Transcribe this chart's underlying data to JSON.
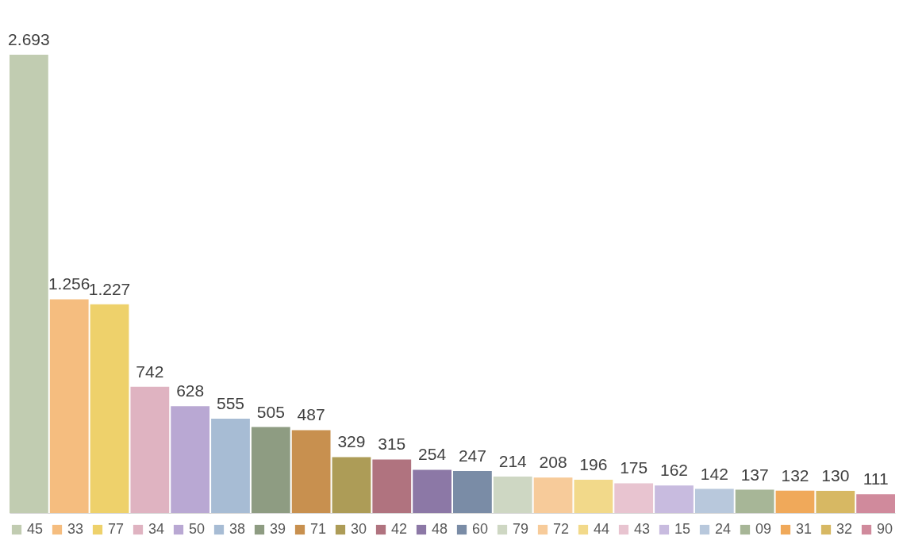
{
  "chart_data": {
    "type": "bar",
    "categories": [
      null
    ],
    "series": [
      {
        "name": "45",
        "color": "#c1ccb1",
        "values": [
          2693
        ],
        "value_labels": [
          "2.693"
        ]
      },
      {
        "name": "33",
        "color": "#f5bd7f",
        "values": [
          1256
        ],
        "value_labels": [
          "1.256"
        ]
      },
      {
        "name": "77",
        "color": "#eed16b",
        "values": [
          1227
        ],
        "value_labels": [
          "1.227"
        ]
      },
      {
        "name": "34",
        "color": "#dfb3c1",
        "values": [
          742
        ],
        "value_labels": [
          "742"
        ]
      },
      {
        "name": "50",
        "color": "#b9a8d3",
        "values": [
          628
        ],
        "value_labels": [
          "628"
        ]
      },
      {
        "name": "38",
        "color": "#a7bcd4",
        "values": [
          555
        ],
        "value_labels": [
          "555"
        ]
      },
      {
        "name": "39",
        "color": "#8e9c82",
        "values": [
          505
        ],
        "value_labels": [
          "505"
        ]
      },
      {
        "name": "71",
        "color": "#c8904f",
        "values": [
          487
        ],
        "value_labels": [
          "487"
        ]
      },
      {
        "name": "30",
        "color": "#ad9c57",
        "values": [
          329
        ],
        "value_labels": [
          "329"
        ]
      },
      {
        "name": "42",
        "color": "#b0737f",
        "values": [
          315
        ],
        "value_labels": [
          "315"
        ]
      },
      {
        "name": "48",
        "color": "#8c78a6",
        "values": [
          254
        ],
        "value_labels": [
          "254"
        ]
      },
      {
        "name": "60",
        "color": "#7a8ca6",
        "values": [
          247
        ],
        "value_labels": [
          "247"
        ]
      },
      {
        "name": "79",
        "color": "#ced7c3",
        "values": [
          214
        ],
        "value_labels": [
          "214"
        ]
      },
      {
        "name": "72",
        "color": "#f7cb9a",
        "values": [
          208
        ],
        "value_labels": [
          "208"
        ]
      },
      {
        "name": "44",
        "color": "#f2d98a",
        "values": [
          196
        ],
        "value_labels": [
          "196"
        ]
      },
      {
        "name": "43",
        "color": "#e8c4d0",
        "values": [
          175
        ],
        "value_labels": [
          "175"
        ]
      },
      {
        "name": "15",
        "color": "#c8bbdf",
        "values": [
          162
        ],
        "value_labels": [
          "162"
        ]
      },
      {
        "name": "24",
        "color": "#b8c8dc",
        "values": [
          142
        ],
        "value_labels": [
          "142"
        ]
      },
      {
        "name": "09",
        "color": "#a7b697",
        "values": [
          137
        ],
        "value_labels": [
          "137"
        ]
      },
      {
        "name": "31",
        "color": "#f0a95a",
        "values": [
          132
        ],
        "value_labels": [
          "132"
        ]
      },
      {
        "name": "32",
        "color": "#d7b863",
        "values": [
          130
        ],
        "value_labels": [
          "130"
        ]
      },
      {
        "name": "90",
        "color": "#d08a9c",
        "values": [
          111
        ],
        "value_labels": [
          "111"
        ]
      }
    ],
    "legend": "bottom",
    "tick_labels": false
  }
}
